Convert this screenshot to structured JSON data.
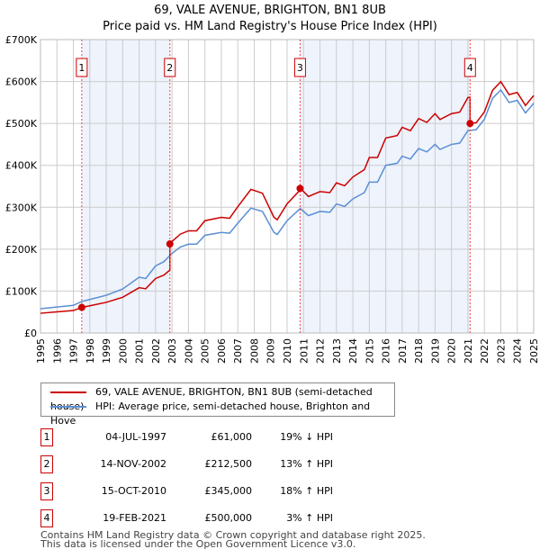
{
  "chart_data": {
    "type": "line",
    "title": "69, VALE AVENUE, BRIGHTON, BN1 8UB",
    "subtitle": "Price paid vs. HM Land Registry's House Price Index (HPI)",
    "xlim": [
      1995,
      2025
    ],
    "ylim": [
      0,
      700000
    ],
    "yticks": [
      {
        "v": 0,
        "label": "£0"
      },
      {
        "v": 100000,
        "label": "£100K"
      },
      {
        "v": 200000,
        "label": "£200K"
      },
      {
        "v": 300000,
        "label": "£300K"
      },
      {
        "v": 400000,
        "label": "£400K"
      },
      {
        "v": 500000,
        "label": "£500K"
      },
      {
        "v": 600000,
        "label": "£600K"
      },
      {
        "v": 700000,
        "label": "£700K"
      }
    ],
    "xticks": [
      "1995",
      "1996",
      "1997",
      "1998",
      "1999",
      "2000",
      "2001",
      "2002",
      "2003",
      "2004",
      "2005",
      "2006",
      "2007",
      "2008",
      "2009",
      "2010",
      "2011",
      "2012",
      "2013",
      "2014",
      "2015",
      "2016",
      "2017",
      "2018",
      "2019",
      "2020",
      "2021",
      "2022",
      "2023",
      "2024",
      "2025"
    ],
    "colors": {
      "property": "#cc0000",
      "hpi": "#5b8fd4",
      "shade": "#eef3fc",
      "grid": "#cccccc",
      "vline": "#ee4444"
    },
    "hpi": {
      "x": [
        1995,
        1996,
        1997,
        1997.5,
        1998,
        1999,
        2000,
        2001,
        2001.4,
        2002,
        2002.5,
        2003,
        2003.5,
        2004,
        2004.5,
        2005,
        2006,
        2006.5,
        2007,
        2007.8,
        2008.5,
        2009.2,
        2009.4,
        2010,
        2010.8,
        2011.3,
        2012,
        2012.6,
        2013,
        2013.5,
        2014,
        2014.7,
        2015,
        2015.5,
        2016,
        2016.7,
        2017,
        2017.5,
        2018,
        2018.5,
        2019,
        2019.3,
        2020,
        2020.5,
        2021,
        2021.5,
        2022,
        2022.5,
        2023,
        2023.5,
        2024,
        2024.5,
        2025
      ],
      "y": [
        58000,
        62000,
        66000,
        75000,
        80000,
        90000,
        105000,
        133000,
        130000,
        160000,
        170000,
        190000,
        205000,
        212000,
        212000,
        233000,
        240000,
        238000,
        262000,
        298000,
        290000,
        240000,
        235000,
        268000,
        297000,
        280000,
        290000,
        288000,
        308000,
        302000,
        320000,
        335000,
        360000,
        360000,
        400000,
        405000,
        422000,
        415000,
        440000,
        432000,
        450000,
        438000,
        450000,
        453000,
        483000,
        485000,
        510000,
        560000,
        580000,
        550000,
        555000,
        525000,
        548000
      ]
    },
    "property_series": {
      "name": "69, VALE AVENUE, BRIGHTON, BN1 8UB (semi-detached house)"
    },
    "hpi_series": {
      "name": "HPI: Average price, semi-detached house, Brighton and Hove"
    },
    "sales": [
      {
        "n": "1",
        "x": 1997.51,
        "date": "04-JUL-1997",
        "price": 61000,
        "price_label": "£61,000",
        "hpi": "19% ↓ HPI"
      },
      {
        "n": "2",
        "x": 2002.87,
        "date": "14-NOV-2002",
        "price": 212500,
        "price_label": "£212,500",
        "hpi": "13% ↑ HPI"
      },
      {
        "n": "3",
        "x": 2010.79,
        "date": "15-OCT-2010",
        "price": 345000,
        "price_label": "£345,000",
        "hpi": "18% ↑ HPI"
      },
      {
        "n": "4",
        "x": 2021.13,
        "date": "19-FEB-2021",
        "price": 500000,
        "price_label": "£500,000",
        "hpi": "3% ↑ HPI"
      }
    ]
  },
  "footer": {
    "line1": "Contains HM Land Registry data © Crown copyright and database right 2025.",
    "line2": "This data is licensed under the Open Government Licence v3.0."
  }
}
